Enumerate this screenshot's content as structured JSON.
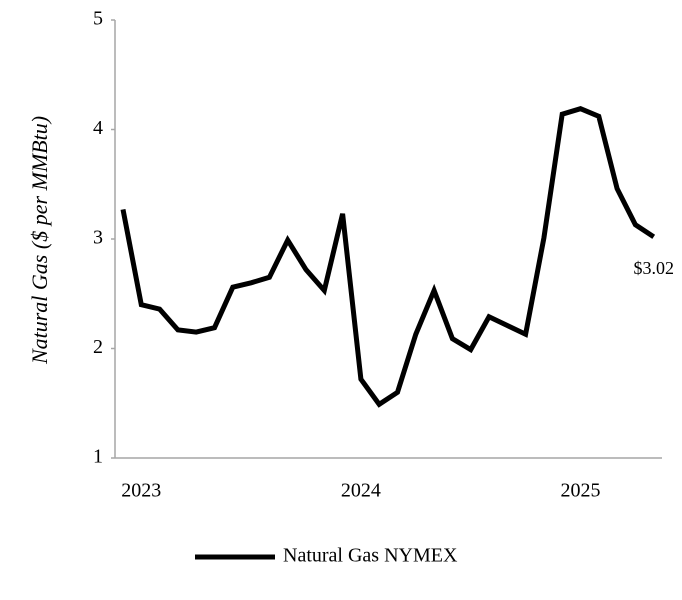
{
  "chart_data": {
    "type": "line",
    "y_label": "Natural Gas ($ per MMBtu)",
    "categories": [
      null,
      "2023",
      null,
      null,
      null,
      null,
      null,
      null,
      null,
      null,
      null,
      null,
      null,
      "2024",
      null,
      null,
      null,
      null,
      null,
      null,
      null,
      null,
      null,
      null,
      null,
      "2025",
      null,
      null,
      null,
      null
    ],
    "series": [
      {
        "name": "Natural Gas NYMEX",
        "color": "#000000",
        "values": [
          3.27,
          2.4,
          2.36,
          2.17,
          2.15,
          2.19,
          2.56,
          2.6,
          2.65,
          2.99,
          2.72,
          2.53,
          3.23,
          1.72,
          1.49,
          1.6,
          2.13,
          2.53,
          2.09,
          1.99,
          2.29,
          2.21,
          2.13,
          3.01,
          4.14,
          4.19,
          4.12,
          3.46,
          3.13,
          3.02
        ],
        "value_labels": [
          null,
          null,
          null,
          null,
          null,
          null,
          null,
          null,
          null,
          null,
          null,
          null,
          null,
          null,
          null,
          null,
          null,
          null,
          null,
          null,
          null,
          null,
          null,
          null,
          null,
          null,
          null,
          null,
          null,
          "$3.02"
        ]
      }
    ],
    "ylim": [
      1,
      5
    ],
    "yticks": [
      1,
      2,
      3,
      4,
      5
    ],
    "grid": false,
    "legend": "bottom"
  }
}
